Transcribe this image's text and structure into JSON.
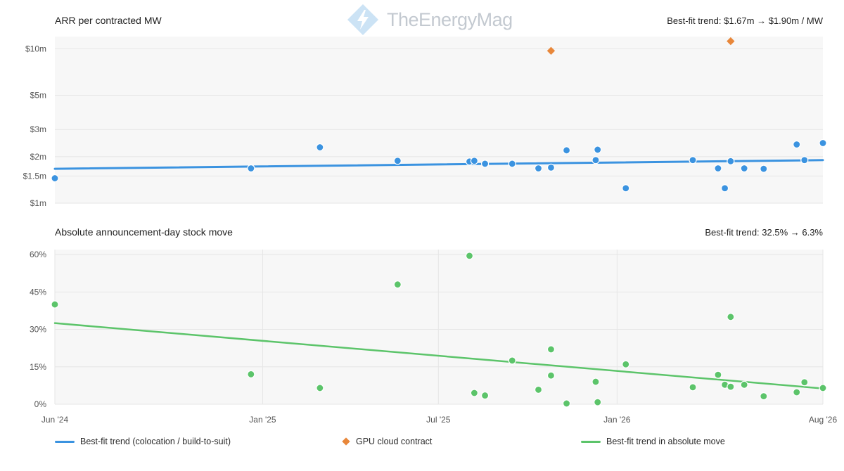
{
  "watermark": {
    "text": "TheEnergyMag"
  },
  "colors": {
    "colocation": "#3b93e0",
    "gpu": "#e8873a",
    "stock": "#5cc46a",
    "grid": "#e6e6e6",
    "plot_bg": "#f7f7f7"
  },
  "legend": {
    "colocation": "Best-fit trend (colocation / build-to-suit)",
    "gpu": "GPU cloud contract",
    "stock": "Best-fit trend in absolute move"
  },
  "chart_data": [
    {
      "type": "scatter",
      "title": "ARR per contracted MW",
      "trend_note": "Best-fit trend: $1.67m → $1.90m / MW",
      "y_scale": "log",
      "ylim": [
        1,
        12
      ],
      "y_ticks": [
        1,
        1.5,
        2,
        3,
        5,
        10
      ],
      "y_tick_labels": [
        "$1m",
        "$1.5m",
        "$2m",
        "$3m",
        "$5m",
        "$10m"
      ],
      "xlim": [
        "2024-06-01",
        "2026-08-01"
      ],
      "series": [
        {
          "name": "colocation / build-to-suit",
          "points": [
            [
              "2024-06-01",
              1.45
            ],
            [
              "2024-12-20",
              1.68
            ],
            [
              "2025-03-01",
              2.3
            ],
            [
              "2025-05-20",
              1.88
            ],
            [
              "2025-08-02",
              1.86
            ],
            [
              "2025-08-07",
              1.88
            ],
            [
              "2025-08-18",
              1.8
            ],
            [
              "2025-09-15",
              1.8
            ],
            [
              "2025-10-12",
              1.68
            ],
            [
              "2025-10-25",
              1.7
            ],
            [
              "2025-11-10",
              2.2
            ],
            [
              "2025-12-10",
              1.9
            ],
            [
              "2025-12-12",
              2.22
            ],
            [
              "2026-01-10",
              1.25
            ],
            [
              "2026-03-20",
              1.9
            ],
            [
              "2026-04-15",
              1.68
            ],
            [
              "2026-04-22",
              1.25
            ],
            [
              "2026-04-28",
              1.87
            ],
            [
              "2026-05-12",
              1.68
            ],
            [
              "2026-06-01",
              1.67
            ],
            [
              "2026-07-05",
              2.4
            ],
            [
              "2026-07-13",
              1.9
            ],
            [
              "2026-08-01",
              2.45
            ]
          ]
        },
        {
          "name": "GPU cloud contract",
          "points": [
            [
              "2025-10-25",
              9.7
            ],
            [
              "2026-04-28",
              11.2
            ]
          ]
        }
      ],
      "trend": {
        "start": [
          "2024-06-01",
          1.67
        ],
        "end": [
          "2026-08-01",
          1.9
        ]
      }
    },
    {
      "type": "scatter",
      "title": "Absolute announcement-day stock move",
      "trend_note": "Best-fit trend: 32.5% → 6.3%",
      "ylim": [
        0,
        62
      ],
      "y_ticks": [
        0,
        15,
        30,
        45,
        60
      ],
      "y_tick_labels": [
        "0%",
        "15%",
        "30%",
        "45%",
        "60%"
      ],
      "xlim": [
        "2024-06-01",
        "2026-08-01"
      ],
      "x_ticks": [
        "2024-06-01",
        "2025-01-01",
        "2025-07-01",
        "2026-01-01",
        "2026-08-01"
      ],
      "x_tick_labels": [
        "Jun '24",
        "Jan '25",
        "Jul '25",
        "Jan '26",
        "Aug '26"
      ],
      "series": [
        {
          "name": "stock move",
          "points": [
            [
              "2024-06-01",
              40
            ],
            [
              "2024-12-20",
              12
            ],
            [
              "2025-03-01",
              6.5
            ],
            [
              "2025-05-20",
              48
            ],
            [
              "2025-08-02",
              59.5
            ],
            [
              "2025-08-07",
              4.5
            ],
            [
              "2025-08-18",
              3.5
            ],
            [
              "2025-09-15",
              17.5
            ],
            [
              "2025-10-12",
              5.8
            ],
            [
              "2025-10-25",
              22
            ],
            [
              "2025-10-25",
              11.5
            ],
            [
              "2025-11-10",
              0.3
            ],
            [
              "2025-12-10",
              9
            ],
            [
              "2025-12-12",
              0.8
            ],
            [
              "2026-01-10",
              16
            ],
            [
              "2026-03-20",
              6.8
            ],
            [
              "2026-04-15",
              11.8
            ],
            [
              "2026-04-22",
              7.8
            ],
            [
              "2026-04-28",
              35
            ],
            [
              "2026-04-28",
              7
            ],
            [
              "2026-05-12",
              7.8
            ],
            [
              "2026-06-01",
              3.2
            ],
            [
              "2026-07-05",
              4.8
            ],
            [
              "2026-07-13",
              8.8
            ],
            [
              "2026-08-01",
              6.5
            ]
          ]
        }
      ],
      "trend": {
        "start": [
          "2024-06-01",
          32.5
        ],
        "end": [
          "2026-08-01",
          6.3
        ]
      }
    }
  ]
}
